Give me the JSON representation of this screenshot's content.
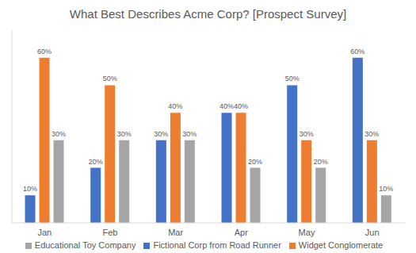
{
  "chart_data": {
    "type": "bar",
    "title": "What Best Describes Acme Corp? [Prospect Survey]",
    "categories": [
      "Jan",
      "Feb",
      "Mar",
      "Apr",
      "May",
      "Jun"
    ],
    "series": [
      {
        "name": "Fictional Corp from Road Runner",
        "color": "#4472c4",
        "values": [
          10,
          20,
          30,
          40,
          50,
          60
        ],
        "value_labels": [
          "10%",
          "20%",
          "30%",
          "40%",
          "50%",
          "60%"
        ]
      },
      {
        "name": "Widget Conglomerate",
        "color": "#ed7d31",
        "values": [
          60,
          50,
          40,
          40,
          30,
          30
        ],
        "value_labels": [
          "60%",
          "50%",
          "40%",
          "40%",
          "30%",
          "30%"
        ]
      },
      {
        "name": "Educational Toy Company",
        "color": "#a5a5a5",
        "values": [
          30,
          30,
          30,
          20,
          20,
          10
        ],
        "value_labels": [
          "30%",
          "30%",
          "30%",
          "20%",
          "20%",
          "10%"
        ]
      }
    ],
    "ylim": [
      0,
      70
    ],
    "grid": false,
    "legend": "bottom",
    "data_labels": true,
    "tick_labels": "x"
  }
}
